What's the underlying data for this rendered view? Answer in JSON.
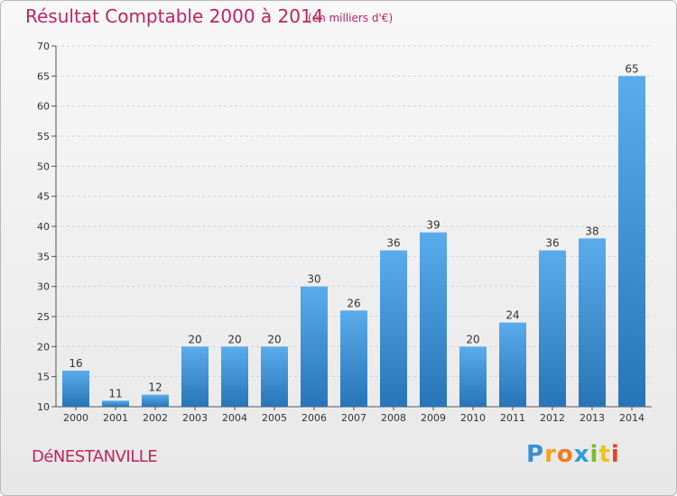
{
  "title": "Résultat Comptable 2000 à 2014",
  "subtitle": "(en milliers d'€)",
  "place": "DéNESTANVILLE",
  "logo": {
    "letters": [
      "P",
      "r",
      "o",
      "x",
      "i",
      "t",
      "i"
    ],
    "colors": [
      "#3a8fd6",
      "#f2a31b",
      "#f07b1d",
      "#2e9fd8",
      "#7bbd2a",
      "#f2c317",
      "#e8402a"
    ]
  },
  "colors": {
    "bar_light": "#5aacec",
    "bar_dark": "#2775b8",
    "title": "#c0245c"
  },
  "chart_data": {
    "type": "bar",
    "categories": [
      "2000",
      "2001",
      "2002",
      "2003",
      "2004",
      "2005",
      "2006",
      "2007",
      "2008",
      "2009",
      "2010",
      "2011",
      "2012",
      "2013",
      "2014"
    ],
    "values": [
      16,
      11,
      12,
      20,
      20,
      20,
      30,
      26,
      36,
      39,
      20,
      24,
      36,
      38,
      65
    ],
    "ylim": [
      10,
      70
    ],
    "yticks": [
      10,
      15,
      20,
      25,
      30,
      35,
      40,
      45,
      50,
      55,
      60,
      65,
      70
    ],
    "grid": true,
    "data_labels": true
  }
}
